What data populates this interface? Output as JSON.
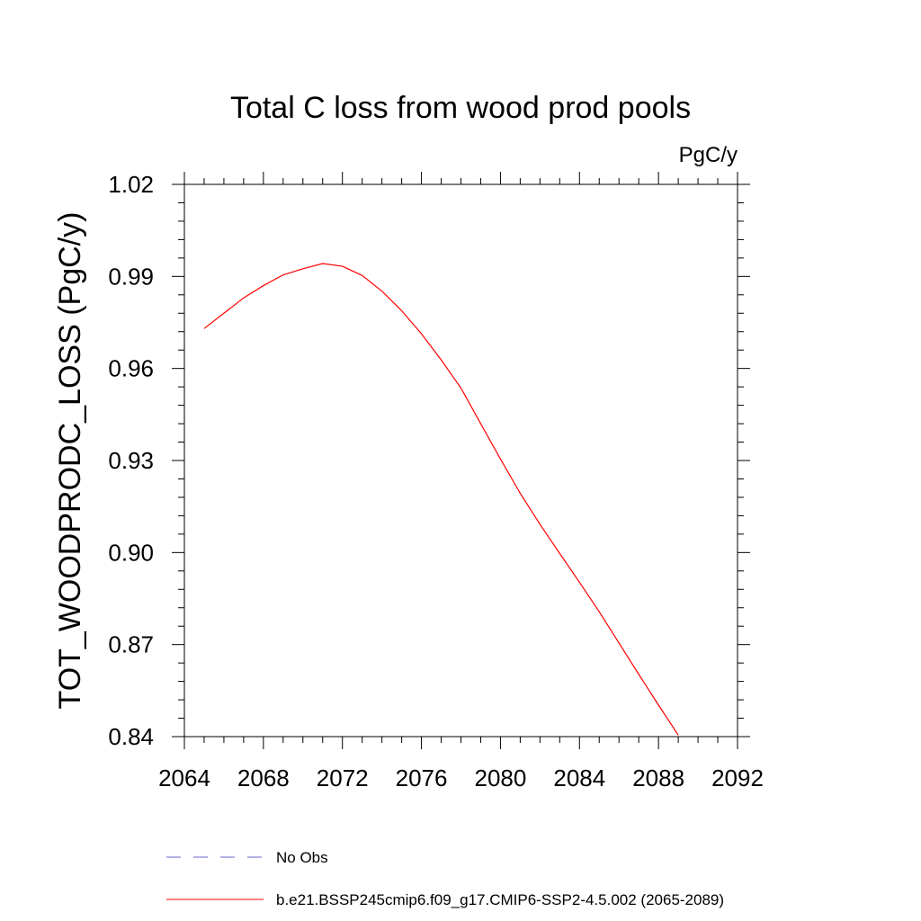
{
  "chart_data": {
    "type": "line",
    "title": "Total C loss from wood prod pools",
    "units": "PgC/y",
    "xlabel": "",
    "ylabel": "TOT_WOODPRODC_LOSS  (PgC/y)",
    "xlim": [
      2064,
      2092
    ],
    "ylim": [
      0.84,
      1.02
    ],
    "xticks": [
      "2064",
      "2068",
      "2072",
      "2076",
      "2080",
      "2084",
      "2088",
      "2092"
    ],
    "yticks": [
      "0.84",
      "0.87",
      "0.90",
      "0.93",
      "0.96",
      "0.99",
      "1.02"
    ],
    "grid": false,
    "legend_position": "bottom",
    "series": [
      {
        "name": "b.e21.BSSP245cmip6.f09_g17.CMIP6-SSP2-4.5.002 (2065-2089)",
        "color": "#ff0000",
        "style": "solid",
        "x": [
          2065,
          2066,
          2067,
          2068,
          2069,
          2070,
          2071,
          2072,
          2073,
          2074,
          2075,
          2076,
          2077,
          2078,
          2079,
          2080,
          2081,
          2082,
          2083,
          2084,
          2085,
          2086,
          2087,
          2088,
          2089
        ],
        "y": [
          0.973,
          0.978,
          0.983,
          0.987,
          0.9905,
          0.9925,
          0.9942,
          0.9933,
          0.9903,
          0.9852,
          0.9788,
          0.9713,
          0.9628,
          0.9536,
          0.942,
          0.9305,
          0.9193,
          0.9092,
          0.8997,
          0.8903,
          0.8807,
          0.8705,
          0.8603,
          0.8503,
          0.8405
        ]
      }
    ],
    "legend": [
      {
        "label": "No Obs",
        "color": "#6666cc",
        "style": "dashed"
      },
      {
        "label": "b.e21.BSSP245cmip6.f09_g17.CMIP6-SSP2-4.5.002 (2065-2089)",
        "color": "#ff0000",
        "style": "solid"
      }
    ]
  }
}
